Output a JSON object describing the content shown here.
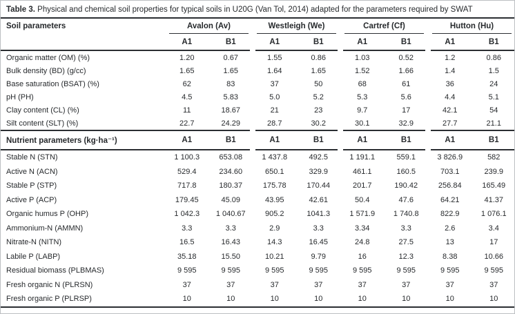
{
  "title": {
    "label": "Table 3.",
    "text": " Physical and chemical soil properties for typical soils in U20G (Van Tol, 2014) adapted for the parameters required by SWAT"
  },
  "colors": {
    "text": "#26292c",
    "rule": "#2a2d31",
    "frame": "#bcbfc2",
    "background": "#ffffff"
  },
  "groups": [
    "Avalon (Av)",
    "Westleigh (We)",
    "Cartref (Cf)",
    "Hutton (Hu)"
  ],
  "subcolumns": [
    "A1",
    "B1"
  ],
  "sections": [
    {
      "header": "Soil parameters",
      "rows": [
        {
          "label": "Organic matter (OM) (%)",
          "values": [
            "1.20",
            "0.67",
            "1.55",
            "0.86",
            "1.03",
            "0.52",
            "1.2",
            "0.86"
          ]
        },
        {
          "label": "Bulk density (BD) (g/cc)",
          "values": [
            "1.65",
            "1.65",
            "1.64",
            "1.65",
            "1.52",
            "1.66",
            "1.4",
            "1.5"
          ]
        },
        {
          "label": "Base saturation (BSAT) (%)",
          "values": [
            "62",
            "83",
            "37",
            "50",
            "68",
            "61",
            "36",
            "24"
          ]
        },
        {
          "label": "pH (PH)",
          "values": [
            "4.5",
            "5.83",
            "5.0",
            "5.2",
            "5.3",
            "5.6",
            "4.4",
            "5.1"
          ]
        },
        {
          "label": "Clay content (CL) (%)",
          "values": [
            "11",
            "18.67",
            "21",
            "23",
            "9.7",
            "17",
            "42.1",
            "54"
          ]
        },
        {
          "label": "Silt content (SLT) (%)",
          "values": [
            "22.7",
            "24.29",
            "28.7",
            "30.2",
            "30.1",
            "32.9",
            "27.7",
            "21.1"
          ]
        }
      ]
    },
    {
      "header": "Nutrient parameters (kg·ha⁻¹)",
      "rows": [
        {
          "label": "Stable N (STN)",
          "values": [
            "1 100.3",
            "653.08",
            "1 437.8",
            "492.5",
            "1 191.1",
            "559.1",
            "3 826.9",
            "582"
          ]
        },
        {
          "label": "Active N (ACN)",
          "values": [
            "529.4",
            "234.60",
            "650.1",
            "329.9",
            "461.1",
            "160.5",
            "703.1",
            "239.9"
          ]
        },
        {
          "label": "Stable P (STP)",
          "values": [
            "717.8",
            "180.37",
            "175.78",
            "170.44",
            "201.7",
            "190.42",
            "256.84",
            "165.49"
          ]
        },
        {
          "label": "Active P (ACP)",
          "values": [
            "179.45",
            "45.09",
            "43.95",
            "42.61",
            "50.4",
            "47.6",
            "64.21",
            "41.37"
          ]
        },
        {
          "label": "Organic humus P (OHP)",
          "values": [
            "1 042.3",
            "1 040.67",
            "905.2",
            "1041.3",
            "1 571.9",
            "1 740.8",
            "822.9",
            "1 076.1"
          ]
        },
        {
          "label": "Ammonium-N (AMMN)",
          "values": [
            "3.3",
            "3.3",
            "2.9",
            "3.3",
            "3.34",
            "3.3",
            "2.6",
            "3.4"
          ]
        },
        {
          "label": "Nitrate-N (NITN)",
          "values": [
            "16.5",
            "16.43",
            "14.3",
            "16.45",
            "24.8",
            "27.5",
            "13",
            "17"
          ]
        },
        {
          "label": "Labile P (LABP)",
          "values": [
            "35.18",
            "15.50",
            "10.21",
            "9.79",
            "16",
            "12.3",
            "8.38",
            "10.66"
          ]
        },
        {
          "label": "Residual biomass (PLBMAS)",
          "values": [
            "9 595",
            "9 595",
            "9 595",
            "9 595",
            "9 595",
            "9 595",
            "9 595",
            "9 595"
          ]
        },
        {
          "label": "Fresh organic N (PLRSN)",
          "values": [
            "37",
            "37",
            "37",
            "37",
            "37",
            "37",
            "37",
            "37"
          ]
        },
        {
          "label": "Fresh organic P (PLRSP)",
          "values": [
            "10",
            "10",
            "10",
            "10",
            "10",
            "10",
            "10",
            "10"
          ]
        }
      ]
    }
  ]
}
